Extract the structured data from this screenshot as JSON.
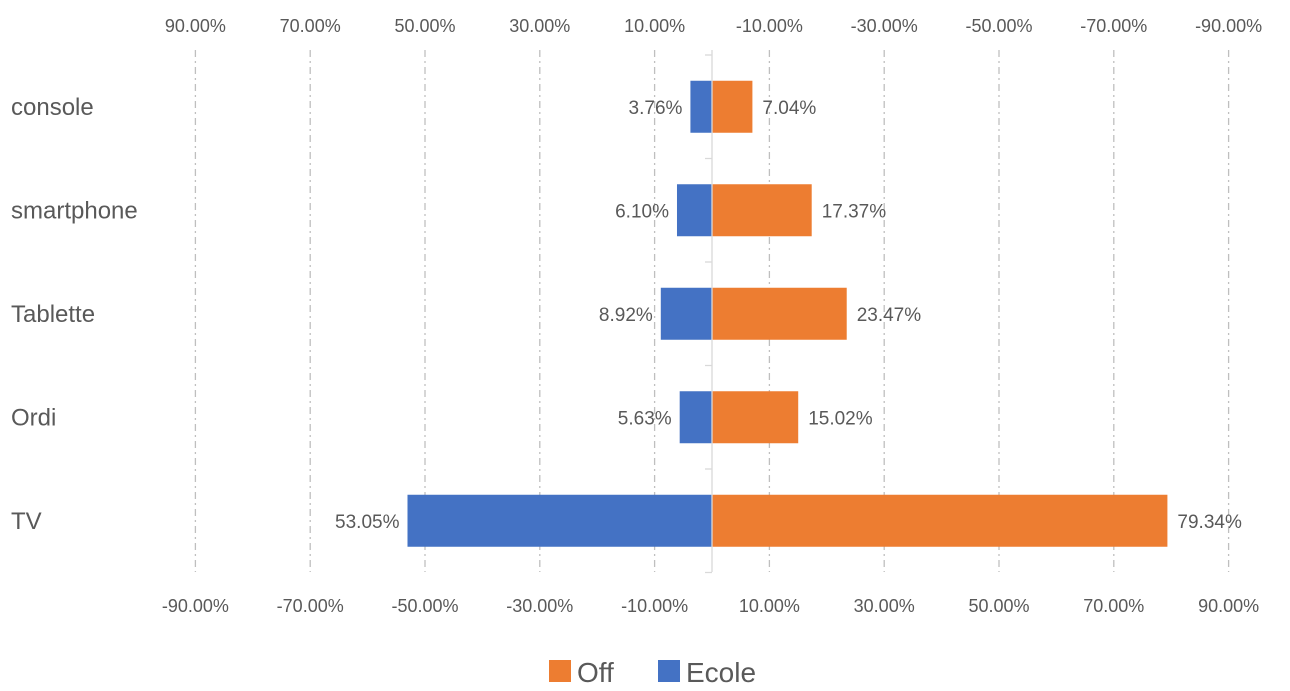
{
  "chart_data": {
    "type": "bar",
    "orientation": "horizontal",
    "layout": "diverging",
    "categories": [
      "console",
      "smartphone",
      "Tablette",
      "Ordi",
      "TV"
    ],
    "series": [
      {
        "name": "Ecole",
        "color": "#4472C4",
        "values": [
          -3.76,
          -6.1,
          -8.92,
          -5.63,
          -53.05
        ],
        "labels": [
          "3.76%",
          "6.10%",
          "8.92%",
          "5.63%",
          "53.05%"
        ]
      },
      {
        "name": "Off",
        "color": "#ED7D31",
        "values": [
          7.04,
          17.37,
          23.47,
          15.02,
          79.34
        ],
        "labels": [
          "7.04%",
          "17.37%",
          "23.47%",
          "15.02%",
          "79.34%"
        ]
      }
    ],
    "xlim": [
      -90,
      90
    ],
    "ticks": [
      -90,
      -70,
      -50,
      -30,
      -10,
      10,
      30,
      50,
      70,
      90
    ],
    "bottom_tick_labels": [
      "-90.00%",
      "-70.00%",
      "-50.00%",
      "-30.00%",
      "-10.00%",
      "10.00%",
      "30.00%",
      "50.00%",
      "70.00%",
      "90.00%"
    ],
    "top_tick_labels": [
      "90.00%",
      "70.00%",
      "50.00%",
      "30.00%",
      "10.00%",
      "-10.00%",
      "-30.00%",
      "-50.00%",
      "-70.00%",
      "-90.00%"
    ],
    "grid": true,
    "gridline_style": "dash-dot",
    "legend": {
      "position": "bottom",
      "entries": [
        "Off",
        "Ecole"
      ]
    },
    "title": "",
    "xlabel": "",
    "ylabel": ""
  }
}
